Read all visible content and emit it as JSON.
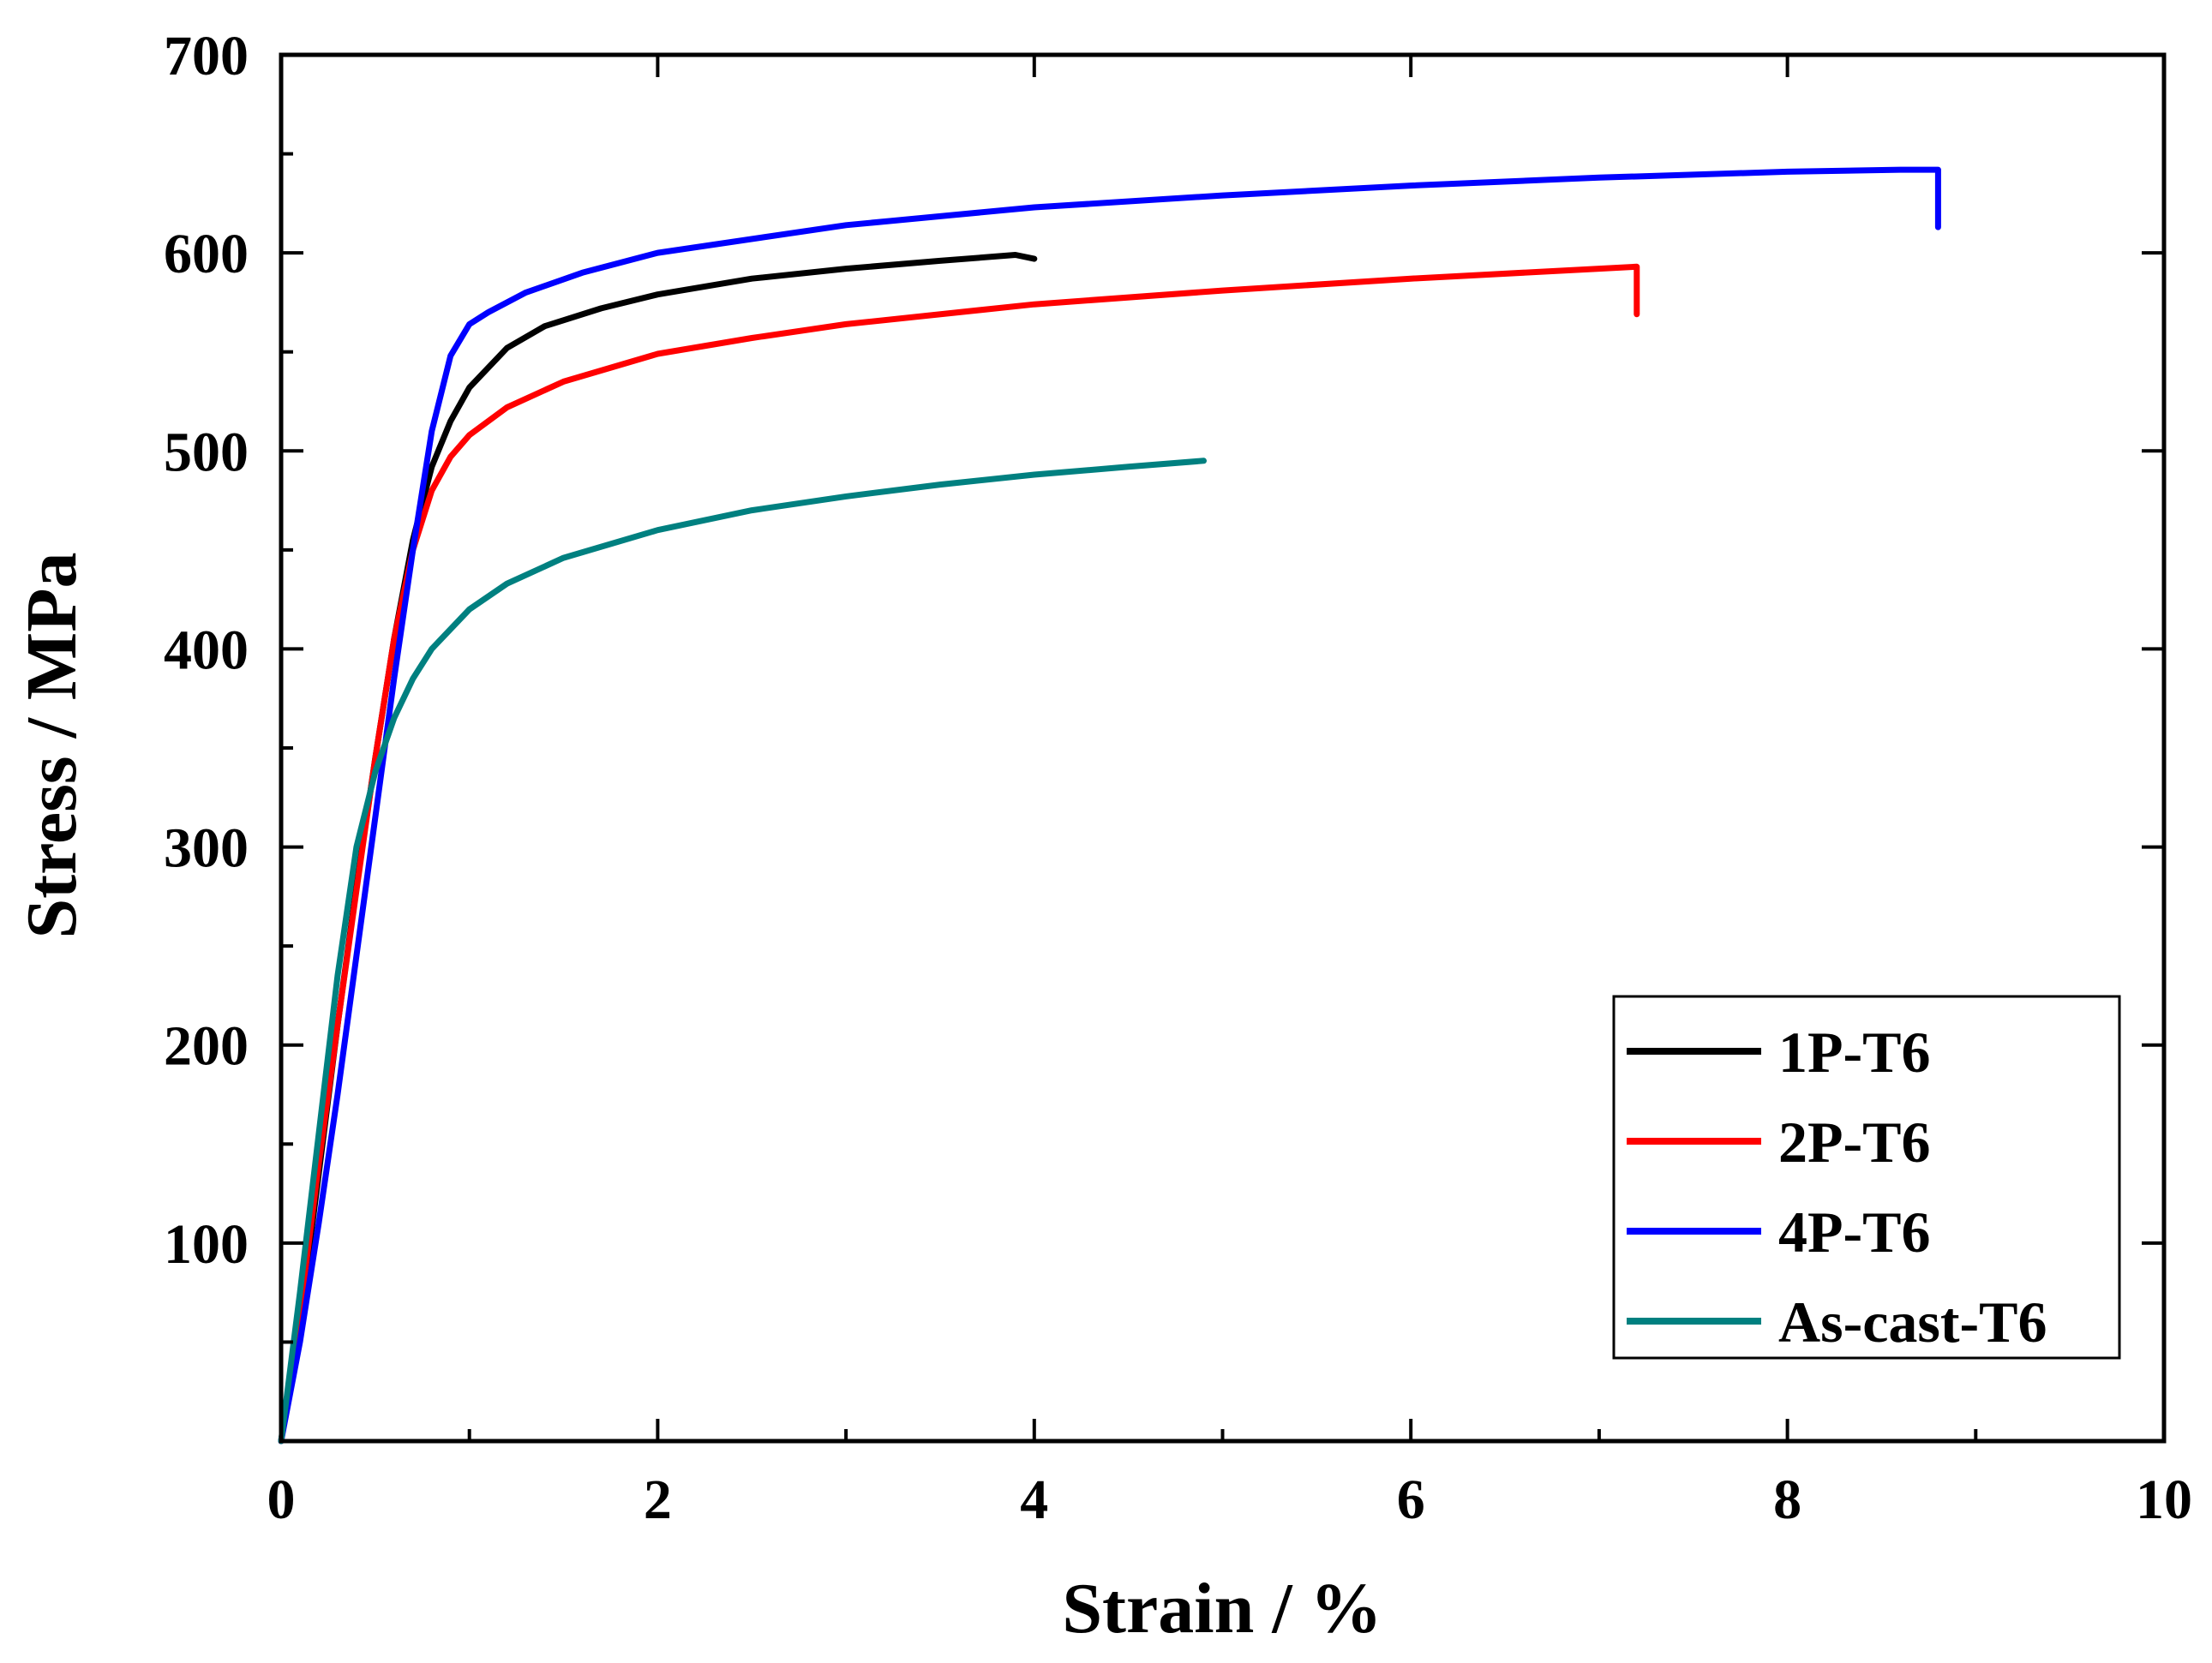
{
  "chart_data": {
    "type": "line",
    "title": "",
    "xlabel": "Strain / %",
    "ylabel": "Stress / MPa",
    "xlim": [
      0,
      10
    ],
    "ylim": [
      0,
      700
    ],
    "xticks": [
      0,
      2,
      4,
      6,
      8,
      10
    ],
    "xtick_labels": [
      "0",
      "2",
      "4",
      "6",
      "8",
      "10"
    ],
    "yticks": [
      100,
      200,
      300,
      400,
      500,
      600,
      700
    ],
    "ytick_labels": [
      "100",
      "200",
      "300",
      "400",
      "500",
      "600",
      "700"
    ],
    "grid": false,
    "legend_position": "bottom-right",
    "series": [
      {
        "name": "1P-T6",
        "color": "#000000",
        "points": [
          [
            0,
            0
          ],
          [
            0.1,
            60
          ],
          [
            0.2,
            135
          ],
          [
            0.3,
            210
          ],
          [
            0.4,
            280
          ],
          [
            0.5,
            345
          ],
          [
            0.6,
            405
          ],
          [
            0.7,
            455
          ],
          [
            0.8,
            492
          ],
          [
            0.9,
            515
          ],
          [
            1.0,
            532
          ],
          [
            1.2,
            552
          ],
          [
            1.4,
            563
          ],
          [
            1.7,
            572
          ],
          [
            2.0,
            579
          ],
          [
            2.5,
            587
          ],
          [
            3.0,
            592
          ],
          [
            3.5,
            596
          ],
          [
            3.9,
            599
          ],
          [
            4.0,
            597
          ]
        ]
      },
      {
        "name": "2P-T6",
        "color": "#ff0000",
        "points": [
          [
            0,
            0
          ],
          [
            0.1,
            65
          ],
          [
            0.2,
            140
          ],
          [
            0.3,
            210
          ],
          [
            0.4,
            278
          ],
          [
            0.5,
            345
          ],
          [
            0.6,
            405
          ],
          [
            0.7,
            450
          ],
          [
            0.8,
            480
          ],
          [
            0.9,
            497
          ],
          [
            1.0,
            508
          ],
          [
            1.2,
            522
          ],
          [
            1.5,
            535
          ],
          [
            2.0,
            549
          ],
          [
            2.5,
            557
          ],
          [
            3.0,
            564
          ],
          [
            4.0,
            574
          ],
          [
            5.0,
            581
          ],
          [
            6.0,
            587
          ],
          [
            7.0,
            592
          ],
          [
            7.2,
            593
          ],
          [
            7.2,
            569
          ]
        ]
      },
      {
        "name": "4P-T6",
        "color": "#0000ff",
        "points": [
          [
            0,
            0
          ],
          [
            0.1,
            50
          ],
          [
            0.2,
            110
          ],
          [
            0.3,
            175
          ],
          [
            0.4,
            245
          ],
          [
            0.5,
            315
          ],
          [
            0.6,
            385
          ],
          [
            0.7,
            450
          ],
          [
            0.8,
            510
          ],
          [
            0.9,
            548
          ],
          [
            1.0,
            564
          ],
          [
            1.1,
            570
          ],
          [
            1.3,
            580
          ],
          [
            1.6,
            590
          ],
          [
            2.0,
            600
          ],
          [
            3.0,
            614
          ],
          [
            4.0,
            623
          ],
          [
            5.0,
            629
          ],
          [
            6.0,
            634
          ],
          [
            7.0,
            638
          ],
          [
            8.0,
            641
          ],
          [
            8.6,
            642
          ],
          [
            8.8,
            642
          ],
          [
            8.8,
            613
          ]
        ]
      },
      {
        "name": "As-cast-T6",
        "color": "#008080",
        "points": [
          [
            0,
            0
          ],
          [
            0.1,
            75
          ],
          [
            0.2,
            155
          ],
          [
            0.3,
            235
          ],
          [
            0.4,
            300
          ],
          [
            0.5,
            338
          ],
          [
            0.6,
            365
          ],
          [
            0.7,
            385
          ],
          [
            0.8,
            400
          ],
          [
            1.0,
            420
          ],
          [
            1.2,
            433
          ],
          [
            1.5,
            446
          ],
          [
            2.0,
            460
          ],
          [
            2.5,
            470
          ],
          [
            3.0,
            477
          ],
          [
            3.5,
            483
          ],
          [
            4.0,
            488
          ],
          [
            4.5,
            492
          ],
          [
            4.9,
            495
          ]
        ]
      }
    ]
  }
}
